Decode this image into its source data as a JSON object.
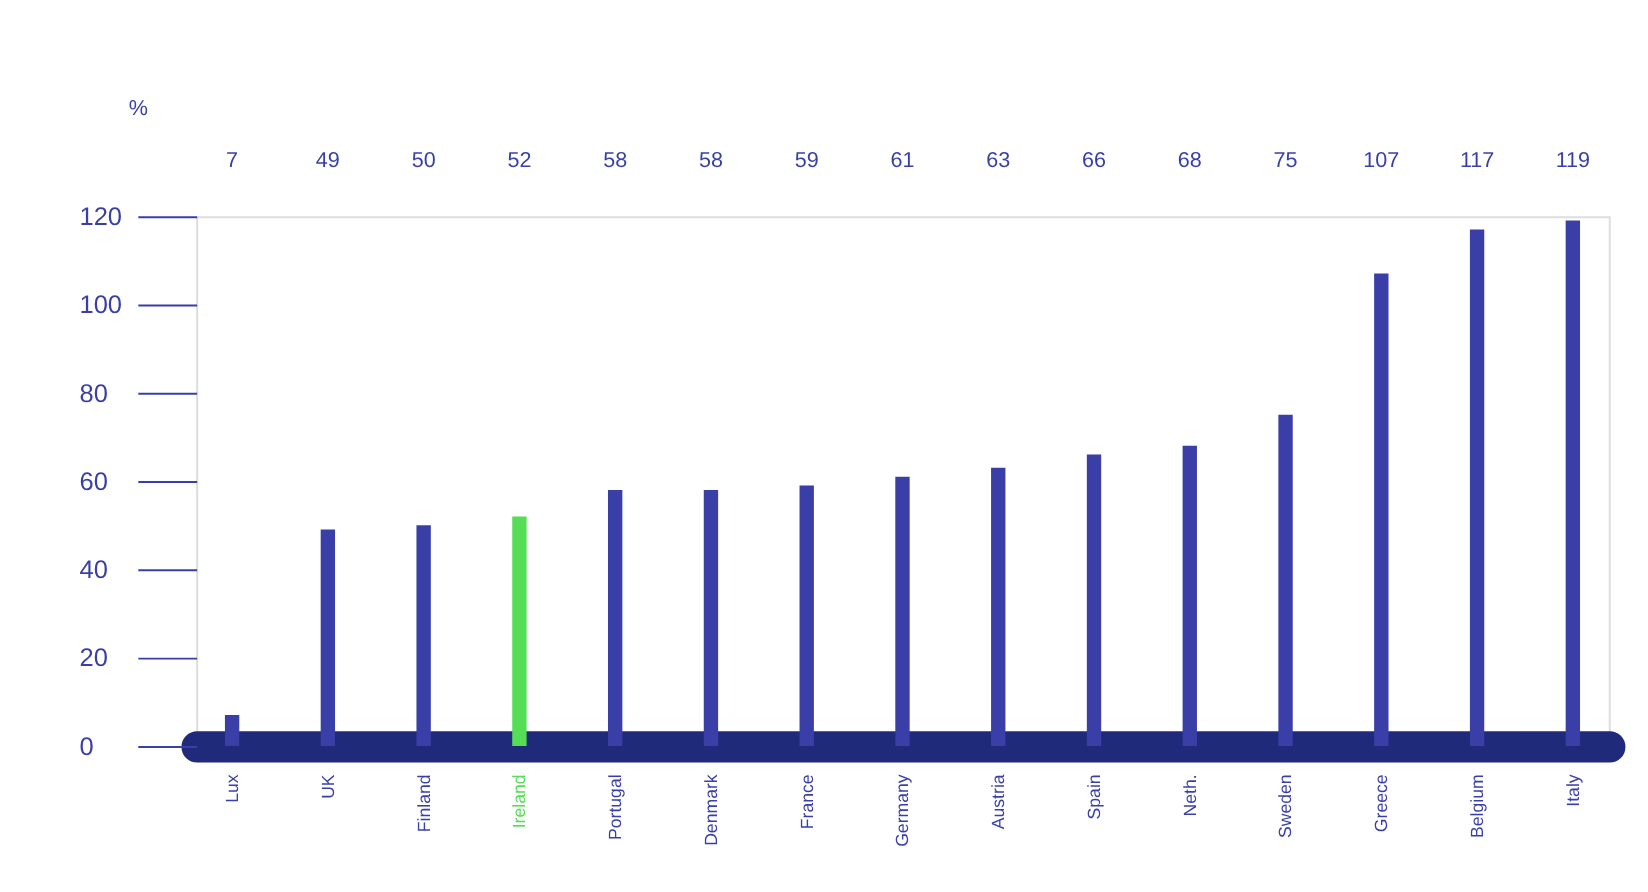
{
  "chart_data": {
    "type": "bar",
    "ylabel": "%",
    "categories": [
      "Lux",
      "UK",
      "Finland",
      "Ireland",
      "Portugal",
      "Denmark",
      "France",
      "Germany",
      "Austria",
      "Spain",
      "Neth.",
      "Sweden",
      "Greece",
      "Belgium",
      "Italy"
    ],
    "values": [
      7,
      49,
      50,
      52,
      58,
      58,
      59,
      61,
      63,
      66,
      68,
      75,
      107,
      117,
      119
    ],
    "colors": [
      "#3a3fa8",
      "#3a3fa8",
      "#3a3fa8",
      "#55dd55",
      "#3a3fa8",
      "#3a3fa8",
      "#3a3fa8",
      "#3a3fa8",
      "#3a3fa8",
      "#3a3fa8",
      "#3a3fa8",
      "#3a3fa8",
      "#3a3fa8",
      "#3a3fa8",
      "#3a3fa8"
    ],
    "ylim": [
      0,
      120
    ],
    "yticks": [
      0,
      20,
      40,
      60,
      80,
      100,
      120
    ],
    "data_labels": true,
    "grid": false
  }
}
